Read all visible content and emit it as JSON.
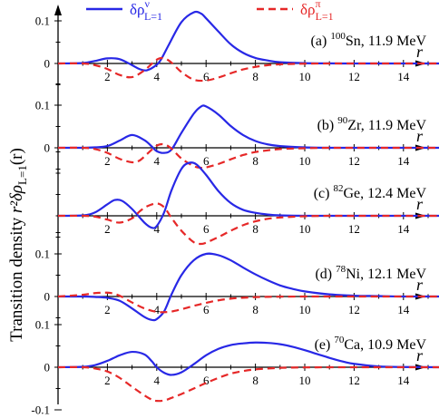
{
  "chart_data": {
    "type": "line",
    "ylabel": "Transition density",
    "ylabel_symbol": "r²δρ",
    "ylabel_subscript": "L=1",
    "ylabel_arg": "(r)",
    "xlabel": "r",
    "xlim": [
      0,
      15.6
    ],
    "x_ticks": [
      2,
      4,
      6,
      8,
      10,
      12,
      14
    ],
    "x_tick_labels": [
      "2",
      "4",
      "6",
      "8",
      "10",
      "12",
      "14"
    ],
    "legend": {
      "position": "top",
      "entries": [
        {
          "label": "δρ",
          "sup": "ν",
          "sub": "L=1",
          "color": "#2828e6",
          "dash": "solid"
        },
        {
          "label": "δρ",
          "sup": "π",
          "sub": "L=1",
          "color": "#e62828",
          "dash": "dashed"
        }
      ]
    },
    "panels": [
      {
        "tag": "(a)",
        "mass": "100",
        "element": "Sn",
        "energy": "11.9 MeV",
        "ylim": [
          -0.05,
          0.15
        ],
        "y_ticks": [
          0,
          0.1
        ],
        "y_tick_labels": [
          "0",
          "0.1"
        ],
        "series": [
          {
            "x": [
              0,
              1,
              1.5,
              2,
              2.5,
              3,
              3.3,
              3.6,
              4,
              4.2,
              4.5,
              5,
              5.5,
              5.8,
              6,
              6.5,
              7,
              7.5,
              8,
              8.5,
              9,
              10,
              11,
              12,
              13,
              14,
              15.5
            ],
            "y": [
              0,
              0.001,
              0.006,
              0.012,
              0.01,
              -0.004,
              -0.013,
              -0.016,
              -0.003,
              0.012,
              0.045,
              0.097,
              0.12,
              0.117,
              0.106,
              0.075,
              0.045,
              0.025,
              0.013,
              0.007,
              0.003,
              0.0008,
              0.0002,
              0,
              0,
              0,
              0
            ]
          },
          {
            "x": [
              0,
              1,
              1.5,
              2,
              2.5,
              3,
              3.5,
              4,
              4.3,
              4.6,
              5,
              5.5,
              6,
              6.5,
              7,
              7.5,
              8,
              8.5,
              9,
              9.5,
              10,
              11,
              12,
              13,
              14,
              15.5
            ],
            "y": [
              0,
              0,
              -0.004,
              -0.013,
              -0.027,
              -0.032,
              -0.016,
              0.009,
              0.012,
              0.002,
              -0.02,
              -0.038,
              -0.04,
              -0.033,
              -0.023,
              -0.014,
              -0.008,
              -0.004,
              -0.002,
              -0.001,
              -0.0005,
              0,
              0,
              0,
              0,
              0
            ]
          }
        ]
      },
      {
        "tag": "(b)",
        "mass": "90",
        "element": "Zr",
        "energy": "11.9 MeV",
        "ylim": [
          -0.06,
          0.15
        ],
        "y_ticks": [
          0,
          0.1
        ],
        "y_tick_labels": [
          "0",
          "0.1"
        ],
        "series": [
          {
            "x": [
              0,
              1,
              1.5,
              2,
              2.5,
              3,
              3.5,
              3.8,
              4,
              4.3,
              4.6,
              5,
              5.5,
              5.8,
              6,
              6.5,
              7,
              7.5,
              8,
              8.5,
              9,
              10,
              11,
              12,
              13,
              14,
              15.5
            ],
            "y": [
              0,
              0,
              0.001,
              0.004,
              0.017,
              0.03,
              0.018,
              0.003,
              -0.008,
              -0.012,
              -0.004,
              0.035,
              0.08,
              0.097,
              0.097,
              0.078,
              0.051,
              0.03,
              0.016,
              0.008,
              0.004,
              0.001,
              0,
              0,
              0,
              0,
              0
            ]
          },
          {
            "x": [
              0,
              1,
              1.5,
              2,
              2.5,
              3,
              3.3,
              3.6,
              4,
              4.3,
              4.6,
              5,
              5.5,
              5.8,
              6,
              6.5,
              7,
              7.5,
              8,
              8.5,
              9,
              10,
              11,
              12,
              13,
              14,
              15.5
            ],
            "y": [
              0,
              0,
              -0.003,
              -0.012,
              -0.026,
              -0.034,
              -0.03,
              -0.015,
              0.005,
              0.008,
              -0.002,
              -0.025,
              -0.043,
              -0.047,
              -0.046,
              -0.038,
              -0.027,
              -0.017,
              -0.01,
              -0.006,
              -0.003,
              -0.001,
              0,
              0,
              0,
              0,
              0
            ]
          }
        ]
      },
      {
        "tag": "(c)",
        "mass": "82",
        "element": "Ge",
        "energy": "12.4 MeV",
        "ylim": [
          -0.065,
          0.15
        ],
        "y_ticks": [],
        "y_tick_labels": [],
        "series": [
          {
            "x": [
              0,
              1,
              1.5,
              2,
              2.3,
              2.6,
              3,
              3.5,
              3.8,
              4,
              4.3,
              4.6,
              5,
              5.3,
              5.6,
              6,
              6.5,
              7,
              7.5,
              8,
              8.5,
              9,
              10,
              11,
              12,
              13,
              14,
              15.5
            ],
            "y": [
              0,
              0.001,
              0.008,
              0.027,
              0.037,
              0.035,
              0.016,
              -0.016,
              -0.028,
              -0.024,
              0.008,
              0.06,
              0.11,
              0.124,
              0.121,
              0.096,
              0.058,
              0.03,
              0.014,
              0.007,
              0.003,
              0.001,
              0,
              0,
              0,
              0,
              0,
              0
            ]
          },
          {
            "x": [
              0,
              1,
              1.5,
              2,
              2.5,
              3,
              3.3,
              3.6,
              4,
              4.3,
              4.6,
              5,
              5.5,
              5.8,
              6,
              6.5,
              7,
              7.5,
              8,
              8.5,
              9,
              10,
              11,
              12,
              13,
              14,
              15.5
            ],
            "y": [
              0,
              0,
              -0.002,
              -0.009,
              -0.016,
              -0.006,
              0.01,
              0.022,
              0.029,
              0.02,
              -0.005,
              -0.035,
              -0.062,
              -0.066,
              -0.063,
              -0.05,
              -0.035,
              -0.022,
              -0.013,
              -0.007,
              -0.004,
              -0.001,
              0,
              0,
              0,
              0,
              0
            ]
          }
        ]
      },
      {
        "tag": "(d)",
        "mass": "78",
        "element": "Ni",
        "energy": "12.1 MeV",
        "ylim": [
          -0.06,
          0.15
        ],
        "y_ticks": [
          0,
          0.1
        ],
        "y_tick_labels": [
          "0",
          "0.1"
        ],
        "series": [
          {
            "x": [
              0,
              1,
              1.5,
              2,
              2.5,
              3,
              3.5,
              3.8,
              4,
              4.3,
              4.6,
              5,
              5.5,
              6,
              6.5,
              7,
              7.5,
              8,
              8.5,
              9,
              9.5,
              10,
              11,
              12,
              13,
              14,
              15.5
            ],
            "y": [
              0,
              0,
              -0.001,
              -0.003,
              -0.01,
              -0.028,
              -0.048,
              -0.055,
              -0.053,
              -0.035,
              0.005,
              0.05,
              0.085,
              0.1,
              0.097,
              0.085,
              0.068,
              0.052,
              0.038,
              0.026,
              0.018,
              0.012,
              0.005,
              0.002,
              0.001,
              0,
              0
            ]
          },
          {
            "x": [
              0,
              1,
              1.5,
              2,
              2.3,
              2.6,
              3,
              3.5,
              4,
              4.5,
              5,
              5.5,
              6,
              6.5,
              7,
              7.5,
              8,
              8.5,
              9,
              10,
              11,
              12,
              13,
              14,
              15.5
            ],
            "y": [
              0,
              0.004,
              0.008,
              0.009,
              0.006,
              -0.001,
              -0.014,
              -0.028,
              -0.036,
              -0.036,
              -0.03,
              -0.022,
              -0.015,
              -0.009,
              -0.005,
              -0.003,
              -0.0015,
              -0.0008,
              -0.0004,
              0,
              0,
              0,
              0,
              0,
              0
            ]
          }
        ]
      },
      {
        "tag": "(e)",
        "mass": "70",
        "element": "Ca",
        "energy": "10.9 MeV",
        "ylim": [
          -0.13,
          0.13
        ],
        "y_ticks": [
          -0.1,
          0,
          0.1
        ],
        "y_tick_labels": [
          "-0.1",
          "0",
          "0.1"
        ],
        "series": [
          {
            "x": [
              0,
              1,
              1.5,
              2,
              2.5,
              3,
              3.5,
              3.8,
              4,
              4.3,
              4.6,
              5,
              5.5,
              6,
              6.5,
              7,
              7.5,
              8,
              8.5,
              9,
              9.5,
              10,
              10.5,
              11,
              11.5,
              12,
              13,
              14,
              15.5
            ],
            "y": [
              0,
              0.001,
              0.005,
              0.015,
              0.028,
              0.036,
              0.03,
              0.014,
              0,
              -0.013,
              -0.018,
              -0.012,
              0.007,
              0.028,
              0.043,
              0.052,
              0.056,
              0.058,
              0.057,
              0.054,
              0.048,
              0.04,
              0.031,
              0.022,
              0.014,
              0.008,
              0.002,
              0.0005,
              0
            ]
          },
          {
            "x": [
              0,
              1,
              1.5,
              2,
              2.5,
              3,
              3.5,
              3.8,
              4,
              4.3,
              4.6,
              5,
              5.5,
              6,
              6.5,
              7,
              7.5,
              8,
              8.5,
              9,
              9.5,
              10,
              10.5,
              11,
              12,
              13,
              14,
              15.5
            ],
            "y": [
              0,
              0,
              -0.003,
              -0.01,
              -0.025,
              -0.046,
              -0.066,
              -0.076,
              -0.079,
              -0.078,
              -0.072,
              -0.063,
              -0.05,
              -0.037,
              -0.025,
              -0.015,
              -0.009,
              -0.005,
              -0.003,
              -0.0015,
              -0.0008,
              -0.0004,
              -0.0002,
              0,
              0,
              0,
              0,
              0
            ]
          }
        ]
      }
    ]
  }
}
